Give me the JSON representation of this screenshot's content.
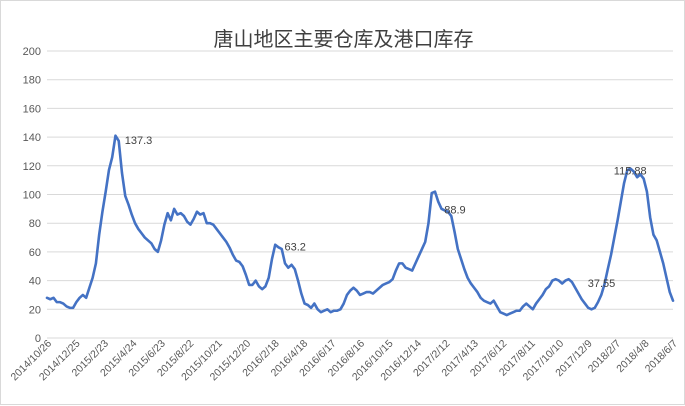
{
  "chart_data": {
    "type": "line",
    "title": "唐山地区主要仓库及港口库存",
    "xlabel": "",
    "ylabel": "",
    "ylim": [
      0,
      200
    ],
    "yticks": [
      0,
      20,
      40,
      60,
      80,
      100,
      120,
      140,
      160,
      180,
      200
    ],
    "grid": true,
    "legend": "none",
    "colors": {
      "line": "#4472c4",
      "grid": "#d9d9d9",
      "axis_text": "#595959",
      "title": "#404040"
    },
    "x_tick_labels": [
      "2014/10/26",
      "2014/12/25",
      "2015/2/23",
      "2015/4/24",
      "2015/6/23",
      "2015/8/22",
      "2015/10/21",
      "2015/12/20",
      "2016/2/18",
      "2016/4/18",
      "2016/6/17",
      "2016/8/16",
      "2016/10/15",
      "2016/12/14",
      "2017/2/12",
      "2017/4/13",
      "2017/6/12",
      "2017/8/11",
      "2017/10/10",
      "2017/12/9",
      "2018/2/7",
      "2018/4/8",
      "2018/6/7"
    ],
    "series": [
      {
        "values": [
          28,
          27,
          28,
          25,
          25,
          24,
          22,
          21,
          21,
          25,
          28,
          30,
          28,
          35,
          42,
          52,
          72,
          88,
          102,
          117,
          126,
          141,
          137.3,
          115,
          99,
          93,
          86,
          80,
          76,
          73,
          70,
          68,
          66,
          62,
          60,
          68,
          79,
          87,
          82,
          90,
          86,
          87,
          85,
          81,
          79,
          83,
          88,
          86,
          87,
          80,
          80,
          79,
          76,
          73,
          70,
          67,
          63,
          58,
          54,
          53,
          50,
          44,
          37,
          37,
          40,
          36,
          34,
          36,
          42,
          55,
          65,
          63.2,
          62,
          52,
          49,
          51,
          48,
          40,
          31,
          24,
          23,
          21,
          24,
          20,
          18,
          19,
          20,
          18,
          19,
          19,
          20,
          24,
          30,
          33,
          35,
          33,
          30,
          31,
          32,
          32,
          31,
          33,
          35,
          37,
          38,
          39,
          41,
          47,
          52,
          52,
          49,
          48,
          47,
          52,
          57,
          62,
          67,
          80,
          101,
          102,
          95,
          90,
          88.9,
          88,
          85,
          74,
          62,
          55,
          48,
          42,
          38,
          35,
          32,
          28,
          26,
          25,
          24,
          26,
          22,
          18,
          17,
          16,
          17,
          18,
          19,
          19,
          22,
          24,
          22,
          20,
          24,
          27,
          30,
          34,
          36,
          40,
          41,
          40,
          38,
          40,
          41,
          39,
          35,
          31,
          27,
          24,
          21,
          20,
          21,
          25,
          30,
          37.55,
          48,
          58,
          70,
          82,
          95,
          108,
          117,
          118,
          115.88,
          112,
          114,
          111,
          102,
          84,
          72,
          68,
          60,
          52,
          42,
          32,
          26
        ]
      }
    ],
    "annotations": [
      {
        "label": "137.3",
        "index": 22,
        "value": 137.3
      },
      {
        "label": "63.2",
        "index": 71,
        "value": 63.2
      },
      {
        "label": "88.9",
        "index": 120,
        "value": 88.9
      },
      {
        "label": "37.55",
        "index": 164,
        "value": 37.55
      },
      {
        "label": "115.88",
        "index": 172,
        "value": 115.88
      }
    ]
  }
}
